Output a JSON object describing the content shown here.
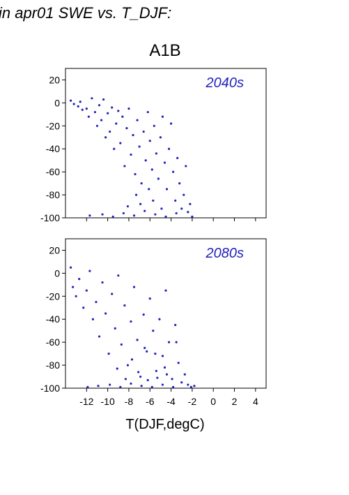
{
  "header": {
    "title": "in apr01 SWE vs. T_DJF:"
  },
  "figure": {
    "scenario": "A1B",
    "x_axis_title": "T(DJF,degC)",
    "point_color": "#2222bb"
  },
  "chart_data": [
    {
      "type": "scatter",
      "panel_label": "2040s",
      "xlim": [
        -14,
        5
      ],
      "ylim": [
        -100,
        30
      ],
      "xticks": [
        -12,
        -10,
        -8,
        -6,
        -4,
        -2,
        0,
        2,
        4
      ],
      "yticks": [
        20,
        0,
        -20,
        -40,
        -60,
        -80,
        -100
      ],
      "x_tick_labels_shown": false,
      "grid": false,
      "points": [
        [
          -13.5,
          2
        ],
        [
          -13.2,
          -1
        ],
        [
          -12.8,
          -3
        ],
        [
          -12.6,
          1
        ],
        [
          -12.4,
          -6
        ],
        [
          -12.0,
          -5
        ],
        [
          -11.8,
          -12
        ],
        [
          -11.5,
          4
        ],
        [
          -11.2,
          -8
        ],
        [
          -11.0,
          -20
        ],
        [
          -10.8,
          -2
        ],
        [
          -10.6,
          -15
        ],
        [
          -10.4,
          3
        ],
        [
          -10.2,
          -30
        ],
        [
          -10.0,
          -9
        ],
        [
          -9.8,
          -25
        ],
        [
          -9.6,
          -4
        ],
        [
          -9.4,
          -40
        ],
        [
          -9.2,
          -18
        ],
        [
          -9.0,
          -7
        ],
        [
          -8.8,
          -35
        ],
        [
          -8.6,
          -12
        ],
        [
          -8.4,
          -55
        ],
        [
          -8.2,
          -22
        ],
        [
          -8.0,
          -5
        ],
        [
          -7.8,
          -45
        ],
        [
          -7.6,
          -28
        ],
        [
          -7.4,
          -62
        ],
        [
          -7.2,
          -15
        ],
        [
          -7.0,
          -38
        ],
        [
          -6.8,
          -70
        ],
        [
          -6.6,
          -25
        ],
        [
          -6.4,
          -50
        ],
        [
          -6.2,
          -8
        ],
        [
          -6.0,
          -33
        ],
        [
          -5.8,
          -58
        ],
        [
          -5.6,
          -20
        ],
        [
          -5.4,
          -44
        ],
        [
          -5.2,
          -66
        ],
        [
          -5.0,
          -30
        ],
        [
          -4.8,
          -12
        ],
        [
          -4.6,
          -52
        ],
        [
          -4.4,
          -75
        ],
        [
          -4.2,
          -40
        ],
        [
          -4.0,
          -18
        ],
        [
          -3.8,
          -60
        ],
        [
          -3.6,
          -85
        ],
        [
          -3.4,
          -48
        ],
        [
          -3.2,
          -70
        ],
        [
          -3.0,
          -92
        ],
        [
          -2.8,
          -80
        ],
        [
          -2.6,
          -55
        ],
        [
          -2.4,
          -95
        ],
        [
          -2.2,
          -88
        ],
        [
          -2.0,
          -99
        ],
        [
          -11.7,
          -98
        ],
        [
          -10.5,
          -97
        ],
        [
          -9.5,
          -99
        ],
        [
          -8.5,
          -96
        ],
        [
          -7.5,
          -98
        ],
        [
          -6.5,
          -94
        ],
        [
          -5.5,
          -97
        ],
        [
          -4.5,
          -99
        ],
        [
          -3.5,
          -96
        ],
        [
          -8.1,
          -90
        ],
        [
          -6.9,
          -88
        ],
        [
          -5.7,
          -85
        ],
        [
          -4.9,
          -92
        ],
        [
          -7.3,
          -80
        ],
        [
          -6.1,
          -75
        ]
      ]
    },
    {
      "type": "scatter",
      "panel_label": "2080s",
      "xlim": [
        -14,
        5
      ],
      "ylim": [
        -100,
        30
      ],
      "xticks": [
        -12,
        -10,
        -8,
        -6,
        -4,
        -2,
        0,
        2,
        4
      ],
      "yticks": [
        20,
        0,
        -20,
        -40,
        -60,
        -80,
        -100
      ],
      "x_tick_labels_shown": true,
      "grid": false,
      "points": [
        [
          -13.5,
          5
        ],
        [
          -13.3,
          -12
        ],
        [
          -13.0,
          -20
        ],
        [
          -12.7,
          -5
        ],
        [
          -12.3,
          -30
        ],
        [
          -12.0,
          -15
        ],
        [
          -11.7,
          2
        ],
        [
          -11.4,
          -40
        ],
        [
          -11.1,
          -25
        ],
        [
          -10.8,
          -55
        ],
        [
          -10.5,
          -8
        ],
        [
          -10.2,
          -35
        ],
        [
          -9.9,
          -70
        ],
        [
          -9.6,
          -18
        ],
        [
          -9.3,
          -48
        ],
        [
          -9.0,
          -2
        ],
        [
          -8.7,
          -62
        ],
        [
          -8.4,
          -28
        ],
        [
          -8.1,
          -80
        ],
        [
          -7.8,
          -42
        ],
        [
          -7.5,
          -12
        ],
        [
          -7.2,
          -58
        ],
        [
          -6.9,
          -90
        ],
        [
          -6.6,
          -36
        ],
        [
          -6.3,
          -68
        ],
        [
          -6.0,
          -22
        ],
        [
          -5.7,
          -50
        ],
        [
          -5.4,
          -85
        ],
        [
          -5.1,
          -40
        ],
        [
          -4.8,
          -72
        ],
        [
          -4.5,
          -15
        ],
        [
          -4.2,
          -60
        ],
        [
          -3.9,
          -92
        ],
        [
          -3.6,
          -45
        ],
        [
          -3.3,
          -78
        ],
        [
          -3.0,
          -95
        ],
        [
          -2.7,
          -88
        ],
        [
          -2.4,
          -97
        ],
        [
          -2.1,
          -99
        ],
        [
          -1.8,
          -98
        ],
        [
          -11.9,
          -99
        ],
        [
          -10.9,
          -98
        ],
        [
          -9.8,
          -97
        ],
        [
          -8.8,
          -99
        ],
        [
          -7.8,
          -96
        ],
        [
          -6.8,
          -98
        ],
        [
          -5.8,
          -99
        ],
        [
          -4.8,
          -97
        ],
        [
          -3.8,
          -99
        ],
        [
          -8.3,
          -92
        ],
        [
          -7.1,
          -86
        ],
        [
          -6.2,
          -93
        ],
        [
          -5.3,
          -91
        ],
        [
          -4.4,
          -88
        ],
        [
          -9.1,
          -83
        ],
        [
          -7.7,
          -75
        ],
        [
          -6.5,
          -65
        ],
        [
          -5.5,
          -70
        ],
        [
          -4.6,
          -82
        ],
        [
          -3.5,
          -60
        ]
      ]
    }
  ]
}
